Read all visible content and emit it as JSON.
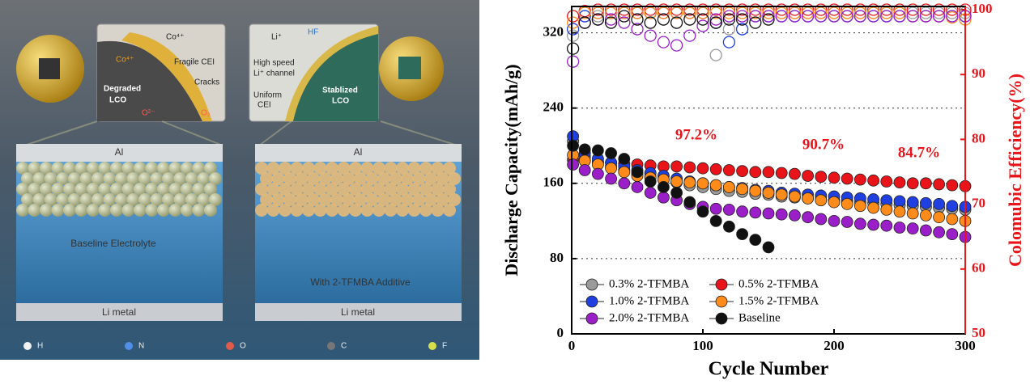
{
  "schematic": {
    "degraded_inset": [
      "Co⁴⁺",
      "Co⁴⁺",
      "Fragile CEI",
      "Cracks",
      "Degraded",
      "LCO",
      "O²⁻",
      "O₂"
    ],
    "stabilized_inset": [
      "Li⁺",
      "HF",
      "High speed",
      "Li⁺ channel",
      "Uniform",
      "CEI",
      "Stablized",
      "LCO"
    ],
    "cells": [
      {
        "top": "Al",
        "electrolyte": "Baseline Electrolyte",
        "bottom": "Li metal"
      },
      {
        "top": "Al",
        "electrolyte": "With 2-TFMBA Additive",
        "bottom": "Li metal"
      }
    ],
    "legend": [
      "H",
      "N",
      "O",
      "C",
      "F"
    ]
  },
  "chart_data": {
    "type": "scatter",
    "xlabel": "Cycle Number",
    "ylabel": "Discharge Capacity(mAh/g)",
    "y2label": "Colomubic Efficiency(%)",
    "annotations": [
      "97.2%",
      "90.7%",
      "84.7%"
    ],
    "x": [
      1,
      10,
      20,
      30,
      40,
      50,
      60,
      70,
      80,
      90,
      100,
      110,
      120,
      130,
      140,
      150,
      160,
      170,
      180,
      190,
      200,
      210,
      220,
      230,
      240,
      250,
      260,
      270,
      280,
      290,
      300
    ],
    "xlim": [
      0,
      300
    ],
    "xticks": [
      0,
      100,
      200,
      300
    ],
    "ylim": [
      0,
      348
    ],
    "yticks": [
      0,
      80,
      160,
      240,
      320
    ],
    "y2lim": [
      50,
      100.5
    ],
    "y2ticks": [
      50,
      60,
      70,
      80,
      90,
      100
    ],
    "y2color": "#e8141a",
    "grid": true,
    "series": [
      {
        "name": "0.3% 2-TFMBA",
        "color": "#9a9a9a",
        "values": [
          205,
          188,
          182,
          178,
          174,
          170,
          167,
          164,
          161,
          158,
          156,
          154,
          152,
          151,
          149,
          148,
          146,
          145,
          144,
          143,
          142,
          141,
          140,
          139,
          138,
          137,
          136,
          135,
          134,
          133,
          132
        ]
      },
      {
        "name": "0.5% 2-TFMBA",
        "color": "#e8141a",
        "values": [
          185,
          184,
          183,
          182,
          181,
          180,
          179,
          178,
          178,
          177,
          176,
          175,
          174,
          173,
          172,
          172,
          171,
          170,
          168,
          167,
          166,
          165,
          164,
          163,
          162,
          161,
          160,
          160,
          159,
          158,
          157
        ]
      },
      {
        "name": "1.0% 2-TFMBA",
        "color": "#1f3fe0",
        "values": [
          210,
          192,
          186,
          182,
          178,
          174,
          171,
          168,
          165,
          162,
          160,
          158,
          156,
          155,
          153,
          152,
          150,
          149,
          148,
          147,
          146,
          145,
          144,
          143,
          142,
          141,
          140,
          139,
          138,
          136,
          135
        ]
      },
      {
        "name": "1.5% 2-TFMBA",
        "color": "#ff8c1a",
        "values": [
          190,
          184,
          180,
          176,
          172,
          168,
          166,
          164,
          162,
          161,
          160,
          158,
          156,
          154,
          152,
          150,
          148,
          146,
          144,
          142,
          140,
          138,
          136,
          134,
          132,
          130,
          128,
          126,
          124,
          122,
          120
        ]
      },
      {
        "name": "2.0% 2-TFMBA",
        "color": "#9b1fc8",
        "values": [
          180,
          174,
          170,
          165,
          160,
          156,
          150,
          145,
          142,
          138,
          135,
          133,
          132,
          130,
          129,
          128,
          127,
          126,
          124,
          122,
          120,
          119,
          117,
          116,
          115,
          113,
          112,
          110,
          108,
          106,
          103
        ]
      },
      {
        "name": "Baseline",
        "color": "#111111",
        "values": [
          200,
          196,
          195,
          192,
          186,
          172,
          162,
          156,
          150,
          140,
          130,
          120,
          114,
          106,
          100,
          92,
          null,
          null,
          null,
          null,
          null,
          null,
          null,
          null,
          null,
          null,
          null,
          null,
          null,
          null,
          null
        ]
      }
    ],
    "ce_series": [
      {
        "axis": "y2",
        "color": "#9a9a9a",
        "values": [
          96,
          99,
          99,
          99.5,
          99.5,
          99.5,
          99.5,
          99.5,
          99.5,
          99.5,
          99.5,
          93,
          97,
          99.5,
          99.5,
          99.5,
          99.5,
          99.5,
          99.5,
          99.5,
          99.5,
          99.5,
          99.5,
          99.5,
          99.5,
          99.5,
          99.5,
          99.5,
          99.5,
          99.5,
          99.5
        ]
      },
      {
        "axis": "y2",
        "color": "#e8141a",
        "values": [
          99,
          99.8,
          100,
          100,
          100,
          100,
          100,
          100,
          100,
          100,
          100,
          100,
          100,
          100,
          100,
          100,
          100,
          100,
          100,
          100,
          100,
          100,
          100,
          100,
          100,
          100,
          100,
          100,
          100,
          100,
          100
        ]
      },
      {
        "axis": "y2",
        "color": "#1f3fe0",
        "values": [
          97,
          99,
          99.5,
          99.5,
          99.5,
          99.5,
          99.5,
          99.5,
          99.5,
          99.5,
          99.5,
          98,
          95,
          97,
          99,
          99,
          99,
          99,
          99,
          99,
          99,
          99,
          99,
          99,
          99,
          99,
          99,
          99,
          99,
          99,
          99
        ]
      },
      {
        "axis": "y2",
        "color": "#ff8c1a",
        "values": [
          98,
          99.5,
          99.5,
          99.5,
          99.5,
          99.5,
          99.5,
          99.5,
          99.5,
          99.5,
          99.5,
          99.5,
          99.5,
          99.5,
          99.5,
          99.5,
          99.5,
          99.5,
          99.5,
          99.5,
          99.5,
          99.5,
          99.5,
          99.5,
          99.5,
          99.5,
          99,
          99,
          99,
          98.8,
          98.5
        ]
      },
      {
        "axis": "y2",
        "color": "#9b1fc8",
        "values": [
          92,
          98,
          98.5,
          98.5,
          98,
          97,
          96,
          95,
          94.5,
          96,
          97.5,
          98.5,
          99,
          99,
          99,
          99,
          99,
          99,
          99,
          99,
          99,
          99,
          99,
          99,
          99,
          99,
          99,
          99,
          99,
          99,
          99
        ]
      },
      {
        "axis": "y2",
        "color": "#111111",
        "values": [
          94,
          98,
          98.5,
          98,
          99,
          98.5,
          98,
          98.5,
          98,
          98.5,
          98.5,
          98,
          98.5,
          98.5,
          98,
          98.5,
          null,
          null,
          null,
          null,
          null,
          null,
          null,
          null,
          null,
          null,
          null,
          null,
          null,
          null,
          null
        ]
      }
    ]
  }
}
